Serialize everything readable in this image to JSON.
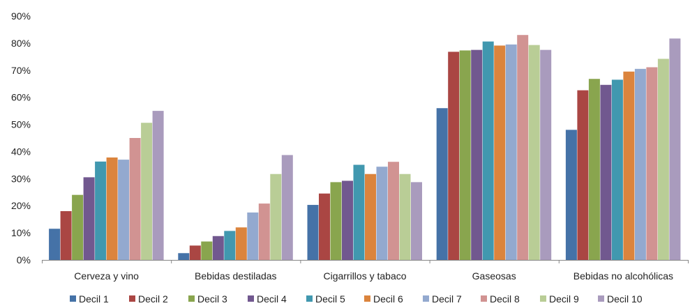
{
  "chart_data": {
    "type": "bar",
    "title": "",
    "xlabel": "",
    "ylabel": "",
    "ylim": [
      0,
      90
    ],
    "yticks": [
      "0%",
      "10%",
      "20%",
      "30%",
      "40%",
      "50%",
      "60%",
      "70%",
      "80%",
      "90%"
    ],
    "grid": false,
    "legend_position": "bottom",
    "categories": [
      "Cerveza y vino",
      "Bebidas destiladas",
      "Cigarrillos y tabaco",
      "Gaseosas",
      "Bebidas no alcohólicas"
    ],
    "series": [
      {
        "name": "Decil 1",
        "color": "#4572A7",
        "values": [
          11.5,
          2.5,
          20.3,
          56.0,
          48.0
        ]
      },
      {
        "name": "Decil 2",
        "color": "#AA4643",
        "values": [
          18.0,
          5.3,
          24.5,
          76.8,
          62.6
        ]
      },
      {
        "name": "Decil 3",
        "color": "#89A54E",
        "values": [
          24.0,
          6.8,
          28.7,
          77.3,
          66.8
        ]
      },
      {
        "name": "Decil 4",
        "color": "#71588F",
        "values": [
          30.5,
          8.8,
          29.2,
          77.5,
          64.6
        ]
      },
      {
        "name": "Decil 5",
        "color": "#4198AF",
        "values": [
          36.3,
          10.7,
          35.1,
          80.6,
          66.5
        ]
      },
      {
        "name": "Decil 6",
        "color": "#DB843D",
        "values": [
          37.8,
          12.0,
          31.7,
          79.1,
          69.5
        ]
      },
      {
        "name": "Decil 7",
        "color": "#93A9CF",
        "values": [
          37.0,
          17.5,
          34.4,
          79.5,
          70.5
        ]
      },
      {
        "name": "Decil 8",
        "color": "#D19392",
        "values": [
          45.0,
          20.8,
          36.2,
          83.0,
          71.1
        ]
      },
      {
        "name": "Decil 9",
        "color": "#B9CD96",
        "values": [
          50.6,
          31.7,
          31.7,
          79.3,
          74.2
        ]
      },
      {
        "name": "Decil 10",
        "color": "#A99BBD",
        "values": [
          55.0,
          38.7,
          28.7,
          77.5,
          81.7
        ]
      }
    ]
  }
}
